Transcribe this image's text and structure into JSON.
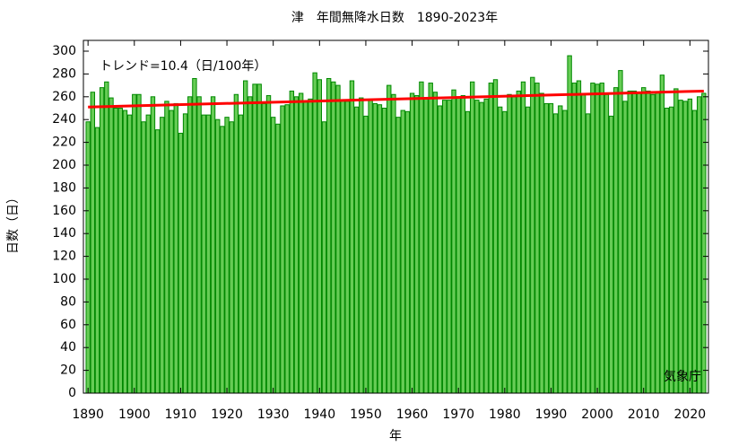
{
  "chart_data": {
    "type": "bar",
    "title": "津　年間無降水日数　1890-2023年",
    "xlabel": "年",
    "ylabel": "日数（日）",
    "annotations": [
      "トレンド=10.4（日/100年）",
      "気象庁"
    ],
    "color": "#66cc55",
    "edge_color": "#008800",
    "x": [
      1890,
      1891,
      1892,
      1893,
      1894,
      1895,
      1896,
      1897,
      1898,
      1899,
      1900,
      1901,
      1902,
      1903,
      1904,
      1905,
      1906,
      1907,
      1908,
      1909,
      1910,
      1911,
      1912,
      1913,
      1914,
      1915,
      1916,
      1917,
      1918,
      1919,
      1920,
      1921,
      1922,
      1923,
      1924,
      1925,
      1926,
      1927,
      1928,
      1929,
      1930,
      1931,
      1932,
      1933,
      1934,
      1935,
      1936,
      1937,
      1938,
      1939,
      1940,
      1941,
      1942,
      1943,
      1944,
      1945,
      1946,
      1947,
      1948,
      1949,
      1950,
      1951,
      1952,
      1953,
      1954,
      1955,
      1956,
      1957,
      1958,
      1959,
      1960,
      1961,
      1962,
      1963,
      1964,
      1965,
      1966,
      1967,
      1968,
      1969,
      1970,
      1971,
      1972,
      1973,
      1974,
      1975,
      1976,
      1977,
      1978,
      1979,
      1980,
      1981,
      1982,
      1983,
      1984,
      1985,
      1986,
      1987,
      1988,
      1989,
      1990,
      1991,
      1992,
      1993,
      1994,
      1995,
      1996,
      1997,
      1998,
      1999,
      2000,
      2001,
      2002,
      2003,
      2004,
      2005,
      2006,
      2007,
      2008,
      2009,
      2010,
      2011,
      2012,
      2013,
      2014,
      2015,
      2016,
      2017,
      2018,
      2019,
      2020,
      2021,
      2022,
      2023
    ],
    "values": [
      238,
      264,
      233,
      268,
      273,
      259,
      250,
      250,
      248,
      244,
      262,
      262,
      238,
      244,
      260,
      231,
      242,
      256,
      248,
      254,
      228,
      245,
      260,
      276,
      260,
      244,
      244,
      260,
      240,
      234,
      242,
      238,
      262,
      244,
      274,
      260,
      271,
      271,
      254,
      261,
      242,
      236,
      252,
      253,
      265,
      260,
      263,
      256,
      258,
      281,
      275,
      238,
      276,
      273,
      270,
      257,
      256,
      274,
      251,
      259,
      243,
      257,
      254,
      253,
      250,
      270,
      262,
      242,
      248,
      247,
      263,
      261,
      273,
      258,
      272,
      264,
      252,
      257,
      257,
      266,
      260,
      261,
      247,
      273,
      257,
      255,
      258,
      272,
      275,
      251,
      247,
      262,
      260,
      265,
      273,
      251,
      277,
      272,
      263,
      254,
      254,
      245,
      252,
      248,
      296,
      272,
      274,
      262,
      245,
      272,
      271,
      272,
      262,
      243,
      268,
      283,
      256,
      265,
      265,
      264,
      268,
      265,
      262,
      264,
      279,
      250,
      251,
      267,
      257,
      256,
      258,
      248,
      260,
      263
    ],
    "trend": {
      "x": [
        1890,
        2023
      ],
      "values": [
        251,
        265
      ],
      "color": "#ff0000"
    },
    "xlim": [
      1889,
      2024
    ],
    "ylim": [
      0,
      300
    ],
    "xticks": [
      1890,
      1900,
      1910,
      1920,
      1930,
      1940,
      1950,
      1960,
      1970,
      1980,
      1990,
      2000,
      2010,
      2020
    ],
    "yticks": [
      0,
      20,
      40,
      60,
      80,
      100,
      120,
      140,
      160,
      180,
      200,
      220,
      240,
      260,
      280,
      300
    ]
  }
}
